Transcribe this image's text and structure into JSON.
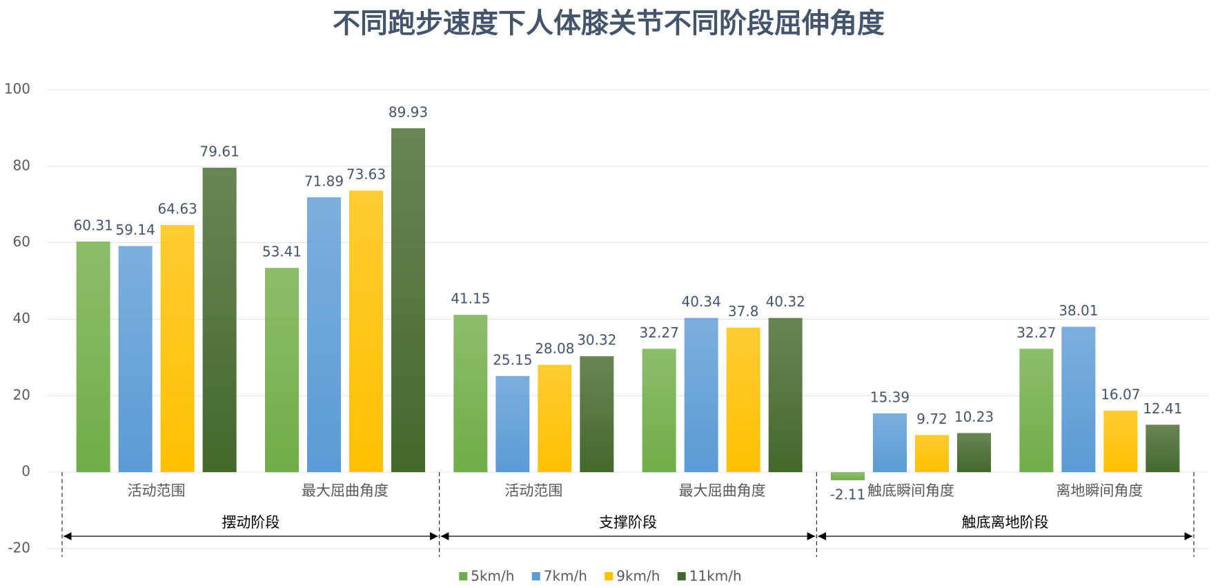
{
  "chart_data": {
    "type": "bar",
    "title": "不同跑步速度下人体膝关节不同阶段屈伸角度",
    "groups": [
      {
        "name": "摆动阶段",
        "categories": [
          "活动范围",
          "最大屈曲角度"
        ]
      },
      {
        "name": "支撑阶段",
        "categories": [
          "活动范围",
          "最大屈曲角度"
        ]
      },
      {
        "name": "触底离地阶段",
        "categories": [
          "触底瞬间角度",
          "离地瞬间角度"
        ]
      }
    ],
    "series": [
      {
        "name": "5km/h",
        "color": "#70ad47",
        "values": [
          60.31,
          53.41,
          41.15,
          32.27,
          -2.11,
          32.27
        ]
      },
      {
        "name": "7km/h",
        "color": "#5b9bd5",
        "values": [
          59.14,
          71.89,
          25.15,
          40.34,
          15.39,
          38.01
        ]
      },
      {
        "name": "9km/h",
        "color": "#ffc000",
        "values": [
          64.63,
          73.63,
          28.08,
          37.8,
          9.72,
          16.07
        ]
      },
      {
        "name": "11km/h",
        "color": "#43682b",
        "values": [
          79.61,
          89.93,
          30.32,
          40.32,
          10.23,
          12.41
        ]
      }
    ],
    "ylim": [
      -20,
      100
    ],
    "yticks": [
      -20,
      0,
      20,
      40,
      60,
      80,
      100
    ],
    "grid": true,
    "legend": "bottom"
  }
}
